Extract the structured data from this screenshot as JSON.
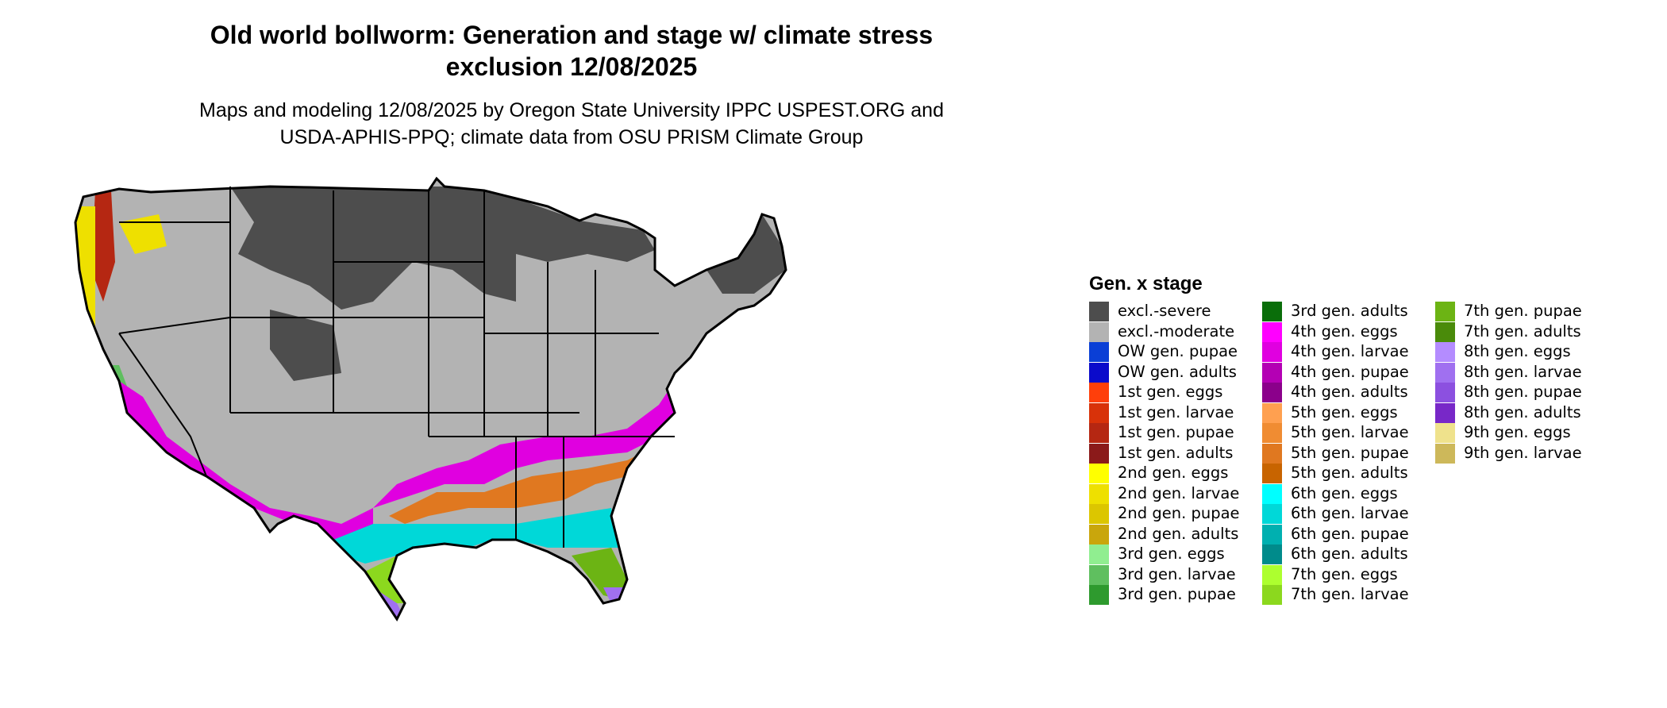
{
  "title_line1": "Old world bollworm: Generation and stage w/ climate stress",
  "title_line2": "exclusion 12/08/2025",
  "subtitle_line1": "Maps and modeling 12/08/2025 by Oregon State University IPPC USPEST.ORG and",
  "subtitle_line2": "USDA-APHIS-PPQ; climate data from OSU PRISM Climate Group",
  "legend": {
    "title": "Gen. x stage",
    "items": [
      {
        "label": "excl.-severe",
        "color": "#4d4d4d"
      },
      {
        "label": "excl.-moderate",
        "color": "#b3b3b3"
      },
      {
        "label": "OW gen. pupae",
        "color": "#0a3fd6"
      },
      {
        "label": "OW gen. adults",
        "color": "#0a0acb"
      },
      {
        "label": "1st gen. eggs",
        "color": "#ff3f0a"
      },
      {
        "label": "1st gen. larvae",
        "color": "#d83209"
      },
      {
        "label": "1st gen. pupae",
        "color": "#b52712"
      },
      {
        "label": "1st gen. adults",
        "color": "#8b1a1a"
      },
      {
        "label": "2nd gen. eggs",
        "color": "#ffff00"
      },
      {
        "label": "2nd gen. larvae",
        "color": "#eee000"
      },
      {
        "label": "2nd gen. pupae",
        "color": "#dcc600"
      },
      {
        "label": "2nd gen. adults",
        "color": "#c9a60c"
      },
      {
        "label": "3rd gen. eggs",
        "color": "#90ee90"
      },
      {
        "label": "3rd gen. larvae",
        "color": "#5fbf5f"
      },
      {
        "label": "3rd gen. pupae",
        "color": "#2e9a2e"
      },
      {
        "label": "3rd gen. adults",
        "color": "#0a6e0a"
      },
      {
        "label": "4th gen. eggs",
        "color": "#ff00ff"
      },
      {
        "label": "4th gen. larvae",
        "color": "#e000e0"
      },
      {
        "label": "4th gen. pupae",
        "color": "#b400b4"
      },
      {
        "label": "4th gen. adults",
        "color": "#8b008b"
      },
      {
        "label": "5th gen. eggs",
        "color": "#ffa050"
      },
      {
        "label": "5th gen. larvae",
        "color": "#f08c32"
      },
      {
        "label": "5th gen. pupae",
        "color": "#e07820"
      },
      {
        "label": "5th gen. adults",
        "color": "#c86400"
      },
      {
        "label": "6th gen. eggs",
        "color": "#00ffff"
      },
      {
        "label": "6th gen. larvae",
        "color": "#00d8d8"
      },
      {
        "label": "6th gen. pupae",
        "color": "#00b0b0"
      },
      {
        "label": "6th gen. adults",
        "color": "#008b8b"
      },
      {
        "label": "7th gen. eggs",
        "color": "#adff2f"
      },
      {
        "label": "7th gen. larvae",
        "color": "#8cd81e"
      },
      {
        "label": "7th gen. pupae",
        "color": "#6cb414"
      },
      {
        "label": "7th gen. adults",
        "color": "#4a8b0a"
      },
      {
        "label": "8th gen. eggs",
        "color": "#b48cff"
      },
      {
        "label": "8th gen. larvae",
        "color": "#a070f0"
      },
      {
        "label": "8th gen. pupae",
        "color": "#8c50e0"
      },
      {
        "label": "8th gen. adults",
        "color": "#7828c8"
      },
      {
        "label": "9th gen. eggs",
        "color": "#efe28c"
      },
      {
        "label": "9th gen. larvae",
        "color": "#cdb85a"
      }
    ]
  }
}
